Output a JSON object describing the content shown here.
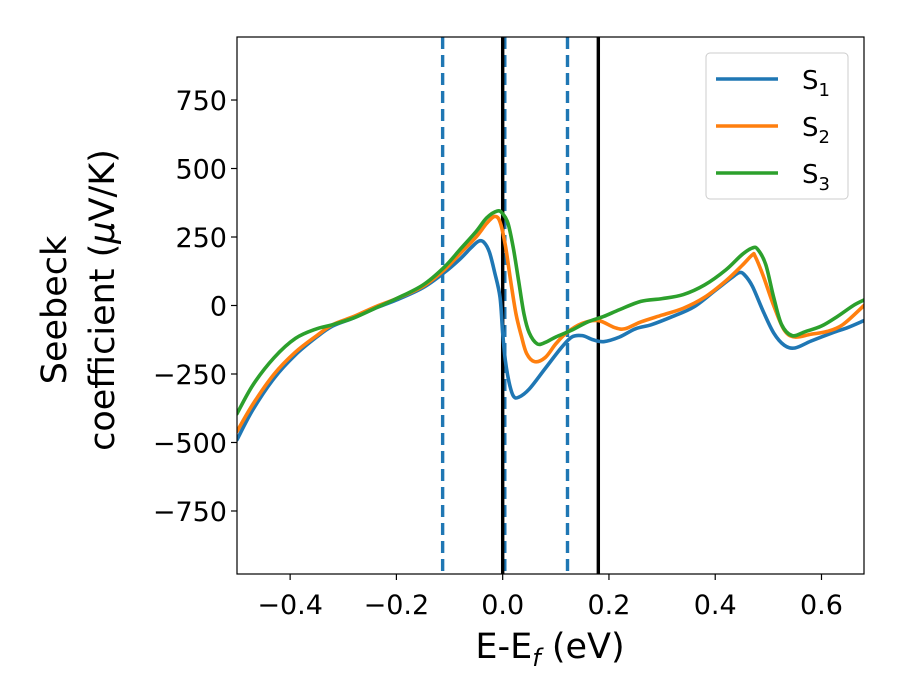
{
  "chart_data": {
    "type": "line",
    "title": "",
    "xlabel": "E-E",
    "xlabel_sub": "f",
    "xlabel_unit": " (eV)",
    "ylabel_line1": "Seebeck",
    "ylabel_line2": "coefficient  (",
    "ylabel_mu": "μ",
    "ylabel_unit": "V/K)",
    "xlim": [
      -0.5,
      0.68
    ],
    "ylim": [
      -980,
      980
    ],
    "xticks": [
      -0.4,
      -0.2,
      0.0,
      0.2,
      0.4,
      0.6
    ],
    "xtick_labels": [
      "−0.4",
      "−0.2",
      "0.0",
      "0.2",
      "0.4",
      "0.6"
    ],
    "yticks": [
      750,
      500,
      250,
      0,
      -250,
      -500,
      -750
    ],
    "ytick_labels": [
      "750",
      "500",
      "250",
      "0",
      "−250",
      "−500",
      "−750"
    ],
    "grid": false,
    "legend_position": "top-right",
    "vlines": [
      {
        "x": -0.113,
        "style": "dashed",
        "color": "#1f77b4"
      },
      {
        "x": 0.004,
        "style": "dashed",
        "color": "#1f77b4"
      },
      {
        "x": 0.122,
        "style": "dashed",
        "color": "#1f77b4"
      },
      {
        "x": 0.0,
        "style": "solid",
        "color": "#000000"
      },
      {
        "x": 0.18,
        "style": "solid",
        "color": "#000000"
      }
    ],
    "series": [
      {
        "name": "S",
        "sub": "1",
        "color": "#1f77b4",
        "points": [
          [
            -0.5,
            -490
          ],
          [
            -0.47,
            -380
          ],
          [
            -0.43,
            -265
          ],
          [
            -0.39,
            -180
          ],
          [
            -0.35,
            -115
          ],
          [
            -0.32,
            -75
          ],
          [
            -0.28,
            -45
          ],
          [
            -0.24,
            -10
          ],
          [
            -0.2,
            20
          ],
          [
            -0.15,
            65
          ],
          [
            -0.11,
            120
          ],
          [
            -0.08,
            170
          ],
          [
            -0.06,
            210
          ],
          [
            -0.045,
            235
          ],
          [
            -0.035,
            230
          ],
          [
            -0.025,
            195
          ],
          [
            -0.015,
            120
          ],
          [
            -0.005,
            30
          ],
          [
            0.0,
            -100
          ],
          [
            0.005,
            -200
          ],
          [
            0.012,
            -280
          ],
          [
            0.02,
            -330
          ],
          [
            0.03,
            -335
          ],
          [
            0.05,
            -305
          ],
          [
            0.08,
            -230
          ],
          [
            0.11,
            -155
          ],
          [
            0.13,
            -115
          ],
          [
            0.15,
            -110
          ],
          [
            0.17,
            -125
          ],
          [
            0.19,
            -132
          ],
          [
            0.22,
            -115
          ],
          [
            0.25,
            -85
          ],
          [
            0.28,
            -70
          ],
          [
            0.32,
            -40
          ],
          [
            0.36,
            -5
          ],
          [
            0.4,
            55
          ],
          [
            0.43,
            100
          ],
          [
            0.445,
            120
          ],
          [
            0.455,
            112
          ],
          [
            0.47,
            70
          ],
          [
            0.49,
            -20
          ],
          [
            0.51,
            -100
          ],
          [
            0.53,
            -145
          ],
          [
            0.55,
            -155
          ],
          [
            0.58,
            -130
          ],
          [
            0.62,
            -100
          ],
          [
            0.65,
            -80
          ],
          [
            0.68,
            -55
          ]
        ]
      },
      {
        "name": "S",
        "sub": "2",
        "color": "#ff7f0e",
        "points": [
          [
            -0.5,
            -460
          ],
          [
            -0.47,
            -360
          ],
          [
            -0.43,
            -250
          ],
          [
            -0.39,
            -170
          ],
          [
            -0.35,
            -110
          ],
          [
            -0.32,
            -70
          ],
          [
            -0.28,
            -40
          ],
          [
            -0.24,
            -5
          ],
          [
            -0.2,
            25
          ],
          [
            -0.15,
            70
          ],
          [
            -0.11,
            130
          ],
          [
            -0.08,
            190
          ],
          [
            -0.05,
            250
          ],
          [
            -0.03,
            300
          ],
          [
            -0.015,
            325
          ],
          [
            -0.005,
            305
          ],
          [
            0.005,
            220
          ],
          [
            0.015,
            90
          ],
          [
            0.025,
            -30
          ],
          [
            0.035,
            -110
          ],
          [
            0.045,
            -175
          ],
          [
            0.06,
            -205
          ],
          [
            0.08,
            -190
          ],
          [
            0.1,
            -140
          ],
          [
            0.12,
            -100
          ],
          [
            0.15,
            -65
          ],
          [
            0.18,
            -55
          ],
          [
            0.21,
            -80
          ],
          [
            0.23,
            -85
          ],
          [
            0.26,
            -60
          ],
          [
            0.3,
            -35
          ],
          [
            0.34,
            -10
          ],
          [
            0.38,
            30
          ],
          [
            0.42,
            90
          ],
          [
            0.45,
            145
          ],
          [
            0.47,
            185
          ],
          [
            0.475,
            180
          ],
          [
            0.49,
            110
          ],
          [
            0.51,
            0
          ],
          [
            0.53,
            -90
          ],
          [
            0.55,
            -115
          ],
          [
            0.58,
            -105
          ],
          [
            0.61,
            -95
          ],
          [
            0.64,
            -70
          ],
          [
            0.68,
            0
          ]
        ]
      },
      {
        "name": "S",
        "sub": "3",
        "color": "#2ca02c",
        "points": [
          [
            -0.5,
            -395
          ],
          [
            -0.47,
            -290
          ],
          [
            -0.43,
            -190
          ],
          [
            -0.39,
            -120
          ],
          [
            -0.35,
            -85
          ],
          [
            -0.32,
            -70
          ],
          [
            -0.28,
            -45
          ],
          [
            -0.24,
            -10
          ],
          [
            -0.2,
            25
          ],
          [
            -0.15,
            75
          ],
          [
            -0.11,
            140
          ],
          [
            -0.08,
            205
          ],
          [
            -0.05,
            270
          ],
          [
            -0.03,
            320
          ],
          [
            -0.01,
            345
          ],
          [
            0.0,
            335
          ],
          [
            0.01,
            300
          ],
          [
            0.02,
            210
          ],
          [
            0.03,
            90
          ],
          [
            0.04,
            -30
          ],
          [
            0.05,
            -100
          ],
          [
            0.065,
            -140
          ],
          [
            0.08,
            -135
          ],
          [
            0.1,
            -115
          ],
          [
            0.13,
            -90
          ],
          [
            0.16,
            -60
          ],
          [
            0.19,
            -40
          ],
          [
            0.22,
            -15
          ],
          [
            0.26,
            15
          ],
          [
            0.3,
            25
          ],
          [
            0.34,
            40
          ],
          [
            0.38,
            75
          ],
          [
            0.42,
            130
          ],
          [
            0.45,
            185
          ],
          [
            0.47,
            210
          ],
          [
            0.48,
            205
          ],
          [
            0.495,
            150
          ],
          [
            0.51,
            30
          ],
          [
            0.525,
            -70
          ],
          [
            0.545,
            -110
          ],
          [
            0.57,
            -95
          ],
          [
            0.6,
            -75
          ],
          [
            0.63,
            -40
          ],
          [
            0.66,
            0
          ],
          [
            0.68,
            20
          ]
        ]
      }
    ]
  }
}
